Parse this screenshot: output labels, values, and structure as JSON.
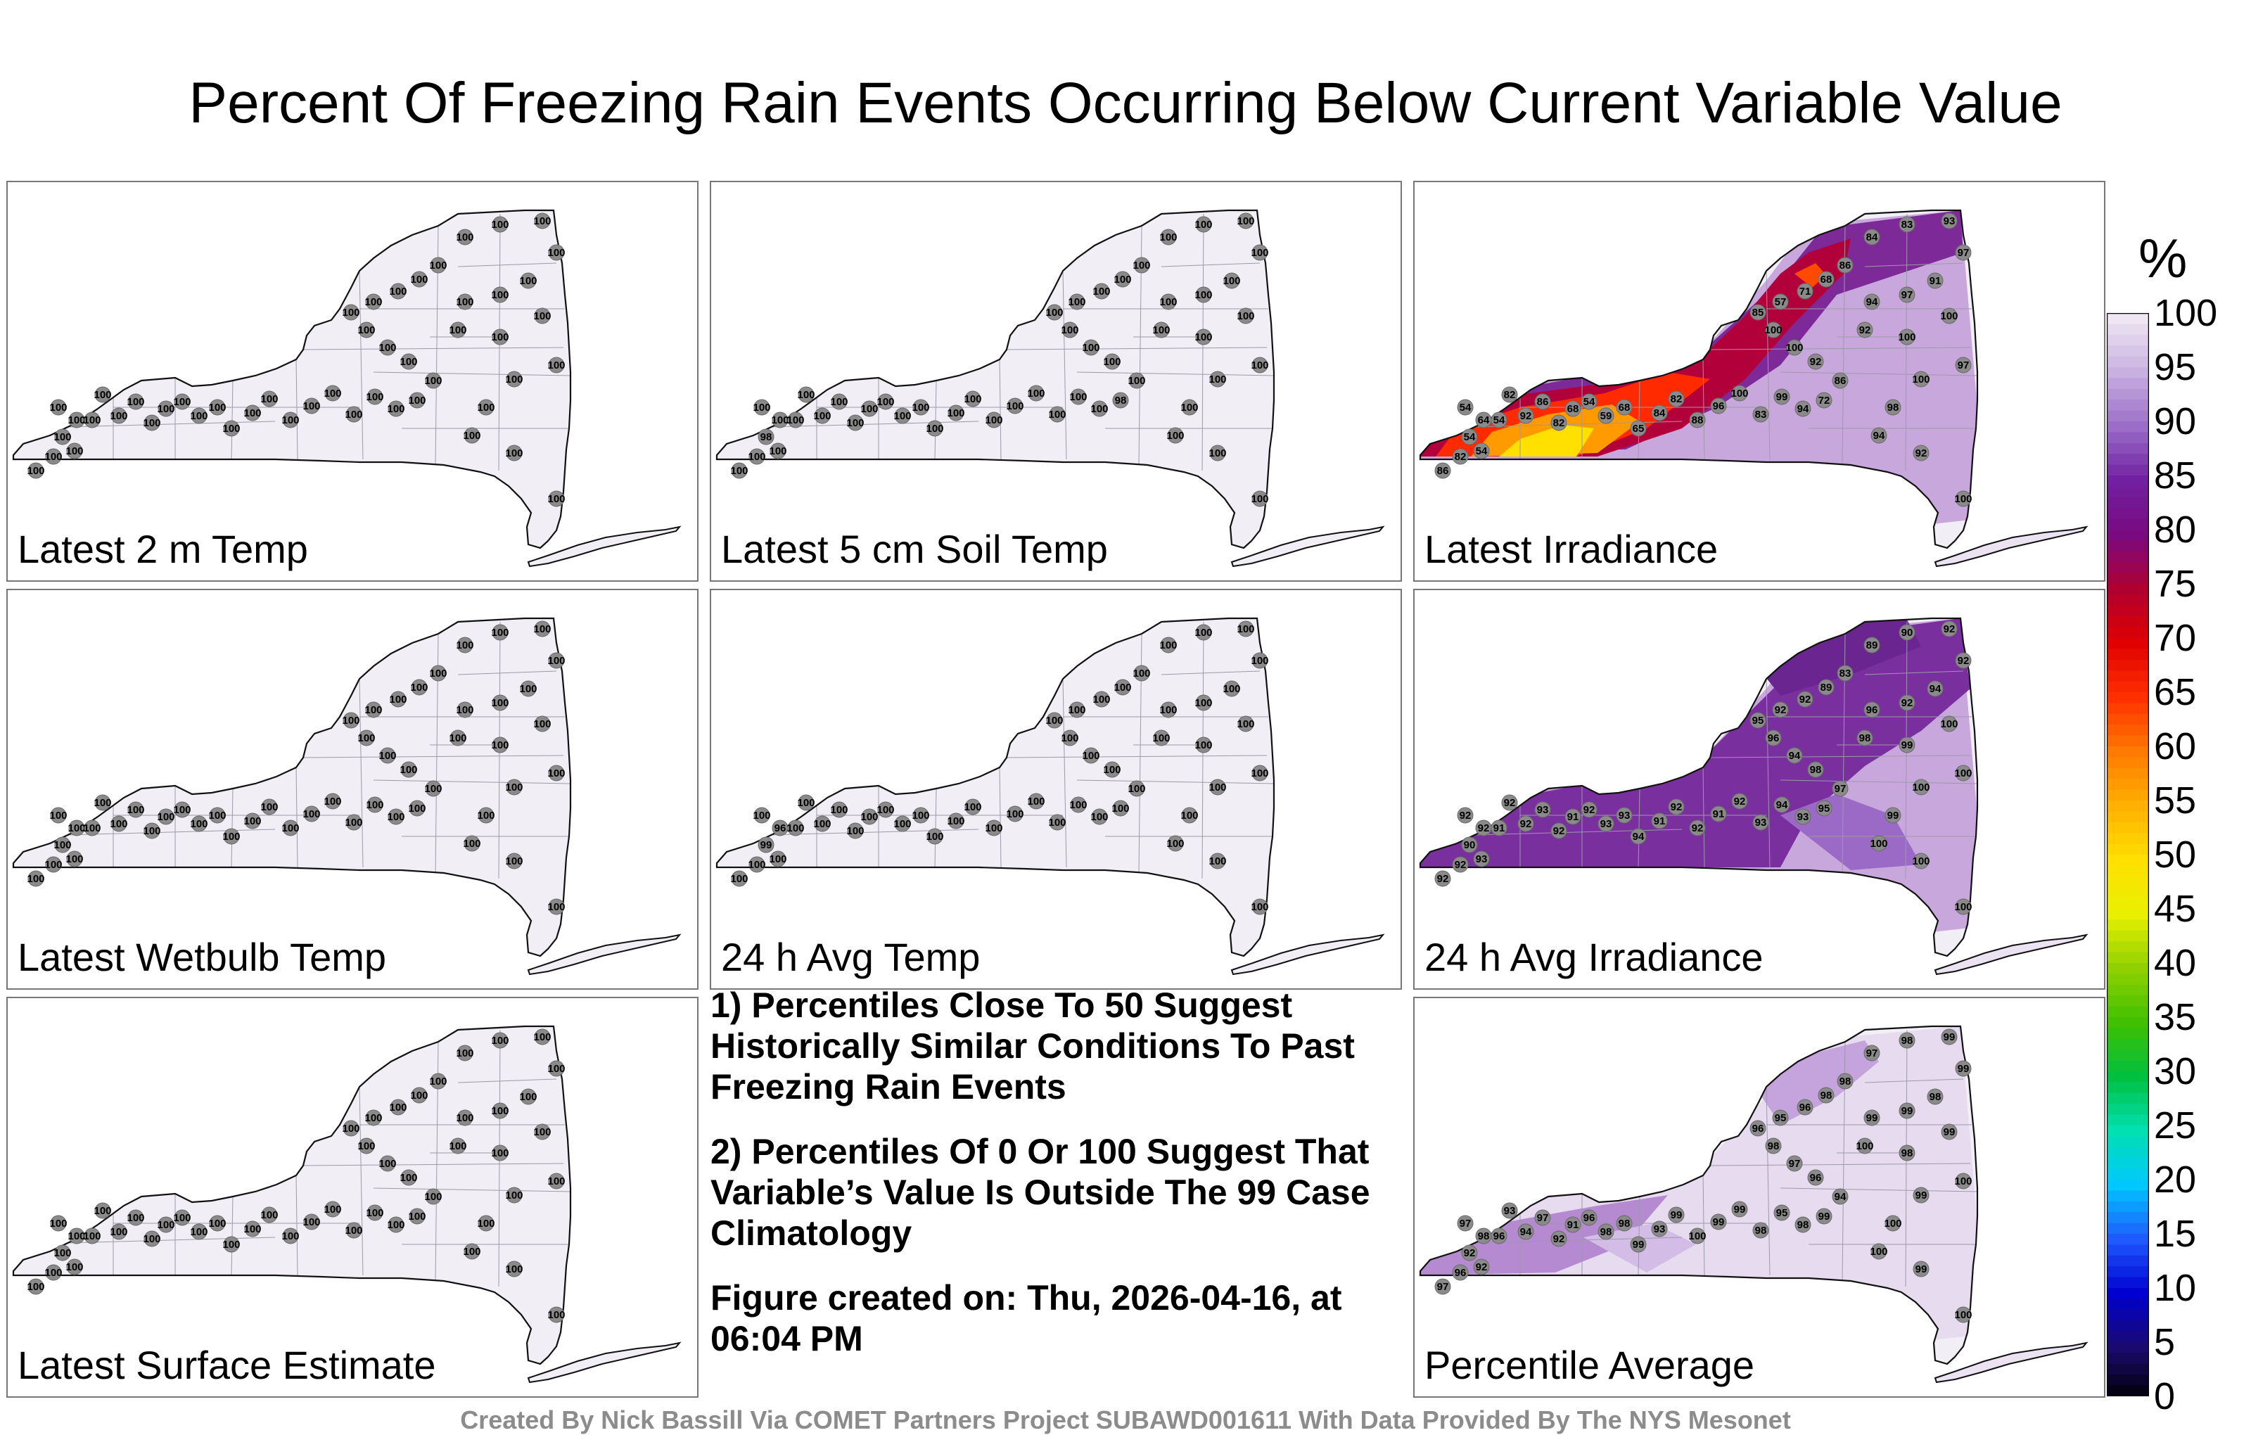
{
  "title": "Percent Of Freezing Rain Events Occurring Below Current Variable Value",
  "panels": [
    {
      "id": "p1",
      "label": "Latest 2 m Temp",
      "scheme": "uniform",
      "values": [
        100,
        100,
        100,
        100,
        100,
        100,
        100,
        100,
        100,
        100,
        100,
        100,
        100,
        100,
        100,
        100,
        100,
        100,
        100,
        100,
        100,
        100,
        100,
        100,
        100,
        100,
        100,
        100,
        100,
        100,
        100,
        100,
        100,
        100,
        100,
        100,
        100,
        100,
        100,
        100,
        100,
        100,
        100,
        100,
        100,
        100,
        100,
        100,
        100,
        100
      ]
    },
    {
      "id": "p2",
      "label": "Latest 5 cm Soil Temp",
      "scheme": "uniform",
      "values": [
        100,
        100,
        100,
        98,
        100,
        100,
        100,
        100,
        100,
        100,
        100,
        100,
        100,
        100,
        100,
        100,
        100,
        100,
        100,
        100,
        100,
        100,
        100,
        100,
        98,
        100,
        100,
        100,
        100,
        100,
        100,
        100,
        100,
        100,
        100,
        100,
        100,
        100,
        100,
        100,
        100,
        100,
        100,
        100,
        100,
        100,
        100,
        100,
        100,
        100
      ]
    },
    {
      "id": "p3",
      "label": "Latest Irradiance",
      "scheme": "irradiance",
      "values": [
        86,
        82,
        54,
        54,
        64,
        54,
        54,
        82,
        92,
        86,
        82,
        68,
        54,
        59,
        68,
        65,
        84,
        82,
        88,
        96,
        100,
        83,
        99,
        94,
        72,
        86,
        92,
        100,
        100,
        85,
        57,
        71,
        68,
        86,
        84,
        83,
        93,
        97,
        91,
        97,
        94,
        92,
        100,
        100,
        97,
        100,
        98,
        94,
        92,
        100
      ]
    },
    {
      "id": "p4",
      "label": "Latest Wetbulb Temp",
      "scheme": "uniform",
      "values": [
        100,
        100,
        100,
        100,
        100,
        100,
        100,
        100,
        100,
        100,
        100,
        100,
        100,
        100,
        100,
        100,
        100,
        100,
        100,
        100,
        100,
        100,
        100,
        100,
        100,
        100,
        100,
        100,
        100,
        100,
        100,
        100,
        100,
        100,
        100,
        100,
        100,
        100,
        100,
        100,
        100,
        100,
        100,
        100,
        100,
        100,
        100,
        100,
        100,
        100
      ]
    },
    {
      "id": "p5",
      "label": "24 h Avg Temp",
      "scheme": "uniform",
      "values": [
        100,
        100,
        100,
        99,
        96,
        100,
        100,
        100,
        100,
        100,
        100,
        100,
        100,
        100,
        100,
        100,
        100,
        100,
        100,
        100,
        100,
        100,
        100,
        100,
        100,
        100,
        100,
        100,
        100,
        100,
        100,
        100,
        100,
        100,
        100,
        100,
        100,
        100,
        100,
        100,
        100,
        100,
        100,
        100,
        100,
        100,
        100,
        100,
        100,
        100
      ]
    },
    {
      "id": "p6",
      "label": "24 h Avg Irradiance",
      "scheme": "avgirr",
      "values": [
        92,
        92,
        93,
        90,
        92,
        92,
        91,
        92,
        92,
        93,
        92,
        91,
        92,
        93,
        93,
        94,
        91,
        92,
        92,
        91,
        92,
        93,
        94,
        93,
        95,
        97,
        98,
        94,
        96,
        95,
        92,
        92,
        89,
        83,
        89,
        90,
        92,
        92,
        94,
        92,
        96,
        98,
        99,
        100,
        100,
        100,
        99,
        100,
        100,
        100
      ]
    },
    {
      "id": "p7",
      "label": "Latest Surface Estimate",
      "scheme": "uniform",
      "values": [
        100,
        100,
        100,
        100,
        100,
        100,
        100,
        100,
        100,
        100,
        100,
        100,
        100,
        100,
        100,
        100,
        100,
        100,
        100,
        100,
        100,
        100,
        100,
        100,
        100,
        100,
        100,
        100,
        100,
        100,
        100,
        100,
        100,
        100,
        100,
        100,
        100,
        100,
        100,
        100,
        100,
        100,
        100,
        100,
        100,
        100,
        100,
        100,
        100,
        100
      ]
    },
    {
      "id": "p8",
      "label": "Percentile Average",
      "scheme": "average",
      "values": [
        97,
        96,
        92,
        92,
        98,
        97,
        96,
        93,
        94,
        97,
        92,
        91,
        96,
        98,
        98,
        99,
        93,
        99,
        100,
        99,
        99,
        98,
        95,
        98,
        99,
        94,
        96,
        97,
        98,
        96,
        95,
        96,
        98,
        98,
        97,
        98,
        99,
        99,
        98,
        99,
        99,
        100,
        98,
        99,
        100,
        99,
        100,
        100,
        99,
        100
      ]
    }
  ],
  "notes": [
    "1) Percentiles Close To 50 Suggest Historically Similar Conditions To Past Freezing Rain Events",
    "2) Percentiles Of 0 Or 100 Suggest That Variable’s Value Is Outside The 99 Case Climatology",
    "Figure created on: Thu, 2026-04-16, at 06:04 PM"
  ],
  "credit": "Created By Nick Bassill Via COMET Partners Project SUBAWD001611 With Data Provided By The NYS Mesonet",
  "colorbar": {
    "unit": "%",
    "ticks": [
      "0",
      "5",
      "10",
      "15",
      "20",
      "25",
      "30",
      "35",
      "40",
      "45",
      "50",
      "55",
      "60",
      "65",
      "70",
      "75",
      "80",
      "85",
      "90",
      "95",
      "100"
    ],
    "stops": [
      "#000000",
      "#1a0a6e",
      "#0000d0",
      "#1f5aff",
      "#00c8ff",
      "#00e0b0",
      "#00c040",
      "#40c000",
      "#90d000",
      "#e8f000",
      "#ffe000",
      "#ffb000",
      "#ff7a00",
      "#ff3000",
      "#e00000",
      "#b00030",
      "#7a0a80",
      "#7020a0",
      "#9b6cc8",
      "#c8b0e0",
      "#eee6f2"
    ]
  },
  "colors": {
    "station": "#8a8a8a",
    "outline": "#111111",
    "county": "#9a9aa8",
    "background": "#f2eef5"
  }
}
